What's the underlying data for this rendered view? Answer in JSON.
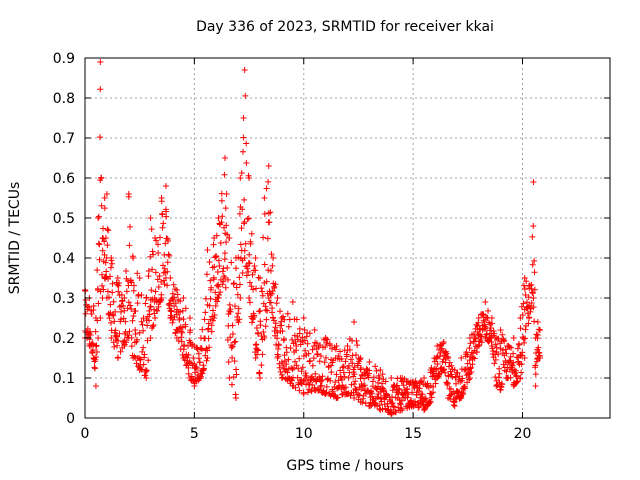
{
  "chart_data": {
    "type": "scatter",
    "title": "Day 336 of 2023, SRMTID for receiver kkai",
    "xlabel": "GPS time / hours",
    "ylabel": "SRMTID / TECUs",
    "xlim": [
      0,
      24
    ],
    "ylim": [
      0,
      0.9
    ],
    "xticks": [
      0,
      5,
      10,
      15,
      20
    ],
    "yticks": [
      0,
      0.1,
      0.2,
      0.3,
      0.4,
      0.5,
      0.6,
      0.7,
      0.8,
      0.9
    ],
    "xtick_labels": [
      "0",
      "5",
      "10",
      "15",
      "20"
    ],
    "ytick_labels": [
      "0",
      "0.1",
      "0.2",
      "0.3",
      "0.4",
      "0.5",
      "0.6",
      "0.7",
      "0.8",
      "0.9"
    ],
    "grid": true,
    "marker": "+",
    "marker_color": "#ff0000",
    "series": [
      {
        "name": "SRMTID",
        "envelope": [
          [
            0.0,
            0.2,
            0.32
          ],
          [
            0.2,
            0.18,
            0.3
          ],
          [
            0.4,
            0.15,
            0.28
          ],
          [
            0.5,
            0.08,
            0.25
          ],
          [
            0.6,
            0.2,
            0.5
          ],
          [
            0.7,
            0.25,
            0.89
          ],
          [
            0.8,
            0.3,
            0.45
          ],
          [
            0.9,
            0.35,
            0.55
          ],
          [
            1.0,
            0.3,
            0.56
          ],
          [
            1.2,
            0.2,
            0.4
          ],
          [
            1.5,
            0.15,
            0.35
          ],
          [
            1.8,
            0.18,
            0.3
          ],
          [
            2.0,
            0.2,
            0.56
          ],
          [
            2.2,
            0.15,
            0.4
          ],
          [
            2.5,
            0.12,
            0.35
          ],
          [
            2.8,
            0.1,
            0.3
          ],
          [
            3.0,
            0.2,
            0.5
          ],
          [
            3.2,
            0.25,
            0.45
          ],
          [
            3.5,
            0.3,
            0.55
          ],
          [
            3.7,
            0.35,
            0.58
          ],
          [
            3.9,
            0.25,
            0.35
          ],
          [
            4.2,
            0.2,
            0.32
          ],
          [
            4.5,
            0.15,
            0.3
          ],
          [
            4.8,
            0.1,
            0.25
          ],
          [
            5.0,
            0.08,
            0.18
          ],
          [
            5.3,
            0.1,
            0.2
          ],
          [
            5.6,
            0.15,
            0.42
          ],
          [
            5.9,
            0.25,
            0.45
          ],
          [
            6.1,
            0.3,
            0.5
          ],
          [
            6.4,
            0.35,
            0.65
          ],
          [
            6.6,
            0.1,
            0.45
          ],
          [
            6.9,
            0.05,
            0.4
          ],
          [
            7.1,
            0.3,
            0.6
          ],
          [
            7.3,
            0.4,
            0.87
          ],
          [
            7.5,
            0.3,
            0.6
          ],
          [
            7.8,
            0.15,
            0.4
          ],
          [
            8.0,
            0.1,
            0.35
          ],
          [
            8.2,
            0.2,
            0.55
          ],
          [
            8.4,
            0.3,
            0.63
          ],
          [
            8.6,
            0.25,
            0.4
          ],
          [
            8.8,
            0.15,
            0.3
          ],
          [
            9.0,
            0.1,
            0.25
          ],
          [
            9.5,
            0.08,
            0.29
          ],
          [
            10.0,
            0.06,
            0.25
          ],
          [
            10.5,
            0.07,
            0.22
          ],
          [
            11.0,
            0.06,
            0.2
          ],
          [
            11.5,
            0.05,
            0.18
          ],
          [
            12.0,
            0.06,
            0.18
          ],
          [
            12.3,
            0.05,
            0.24
          ],
          [
            12.6,
            0.04,
            0.15
          ],
          [
            13.0,
            0.03,
            0.14
          ],
          [
            13.5,
            0.02,
            0.12
          ],
          [
            14.0,
            0.01,
            0.1
          ],
          [
            14.5,
            0.02,
            0.1
          ],
          [
            15.0,
            0.03,
            0.09
          ],
          [
            15.5,
            0.02,
            0.1
          ],
          [
            15.8,
            0.04,
            0.12
          ],
          [
            16.1,
            0.1,
            0.18
          ],
          [
            16.4,
            0.12,
            0.19
          ],
          [
            16.6,
            0.05,
            0.15
          ],
          [
            16.9,
            0.03,
            0.12
          ],
          [
            17.2,
            0.05,
            0.15
          ],
          [
            17.6,
            0.1,
            0.2
          ],
          [
            18.0,
            0.18,
            0.25
          ],
          [
            18.3,
            0.2,
            0.29
          ],
          [
            18.6,
            0.18,
            0.25
          ],
          [
            18.8,
            0.08,
            0.2
          ],
          [
            19.0,
            0.07,
            0.22
          ],
          [
            19.3,
            0.1,
            0.18
          ],
          [
            19.6,
            0.08,
            0.2
          ],
          [
            19.9,
            0.1,
            0.25
          ],
          [
            20.1,
            0.15,
            0.35
          ],
          [
            20.3,
            0.25,
            0.33
          ],
          [
            20.5,
            0.3,
            0.59
          ],
          [
            20.6,
            0.08,
            0.2
          ],
          [
            20.7,
            0.15,
            0.24
          ],
          [
            20.8,
            0.15,
            0.22
          ]
        ]
      }
    ]
  }
}
